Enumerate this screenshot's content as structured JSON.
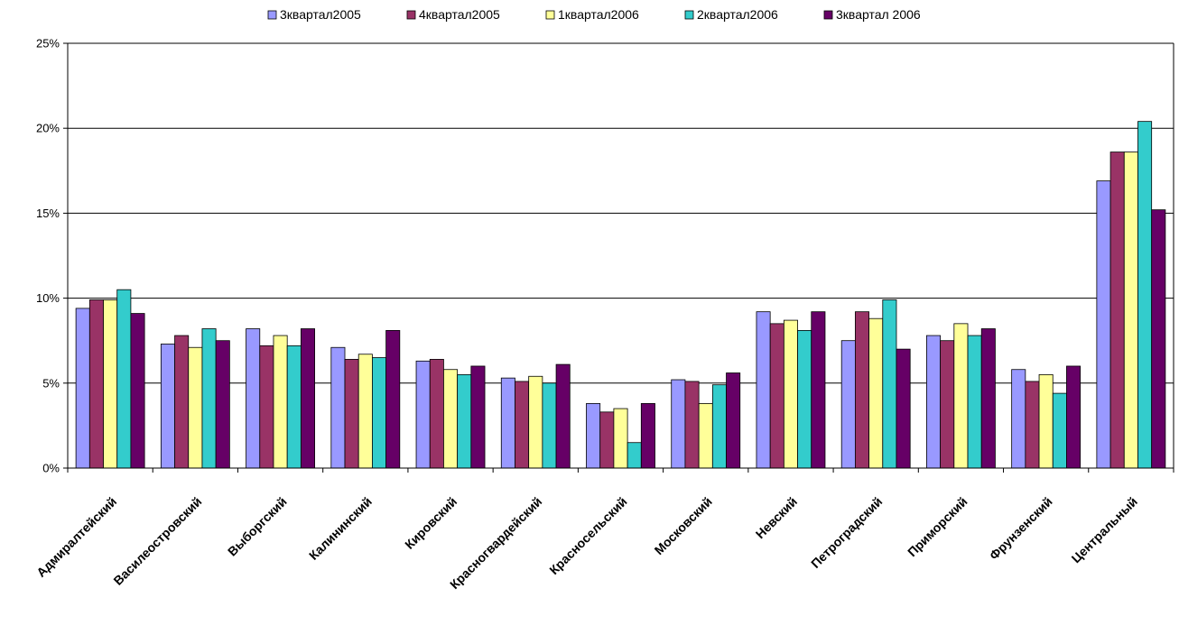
{
  "chart_data": {
    "type": "bar",
    "categories": [
      "Адмиралтейский",
      "Василеостровский",
      "Выборгский",
      "Калининский",
      "Кировский",
      "Красногвардейский",
      "Красносельский",
      "Московский",
      "Невский",
      "Петроградский",
      "Приморский",
      "Фрунзенский",
      "Центральный"
    ],
    "series": [
      {
        "name": "3квартал2005",
        "color": "#9999ff",
        "values": [
          9.4,
          7.3,
          8.2,
          7.1,
          6.3,
          5.3,
          3.8,
          5.2,
          9.2,
          7.5,
          7.8,
          5.8,
          16.9
        ]
      },
      {
        "name": "4квартал2005",
        "color": "#993366",
        "values": [
          9.9,
          7.8,
          7.2,
          6.4,
          6.4,
          5.1,
          3.3,
          5.1,
          8.5,
          9.2,
          7.5,
          5.1,
          18.6
        ]
      },
      {
        "name": "1квартал2006",
        "color": "#ffff99",
        "values": [
          9.9,
          7.1,
          7.8,
          6.7,
          5.8,
          5.4,
          3.5,
          3.8,
          8.7,
          8.8,
          8.5,
          5.5,
          18.6
        ]
      },
      {
        "name": "2квартал2006",
        "color": "#33cccc",
        "values": [
          10.5,
          8.2,
          7.2,
          6.5,
          5.5,
          5.0,
          1.5,
          4.9,
          8.1,
          9.9,
          7.8,
          4.4,
          20.4
        ]
      },
      {
        "name": "3квартал 2006",
        "color": "#660066",
        "values": [
          9.1,
          7.5,
          8.2,
          8.1,
          6.0,
          6.1,
          3.8,
          5.6,
          9.2,
          7.0,
          8.2,
          6.0,
          15.2
        ]
      }
    ],
    "ylim": [
      0,
      25
    ],
    "yticks": [
      0,
      5,
      10,
      15,
      20,
      25
    ],
    "ytick_labels": [
      "0%",
      "5%",
      "10%",
      "15%",
      "20%",
      "25%"
    ],
    "grid": true,
    "legend_position": "top"
  }
}
